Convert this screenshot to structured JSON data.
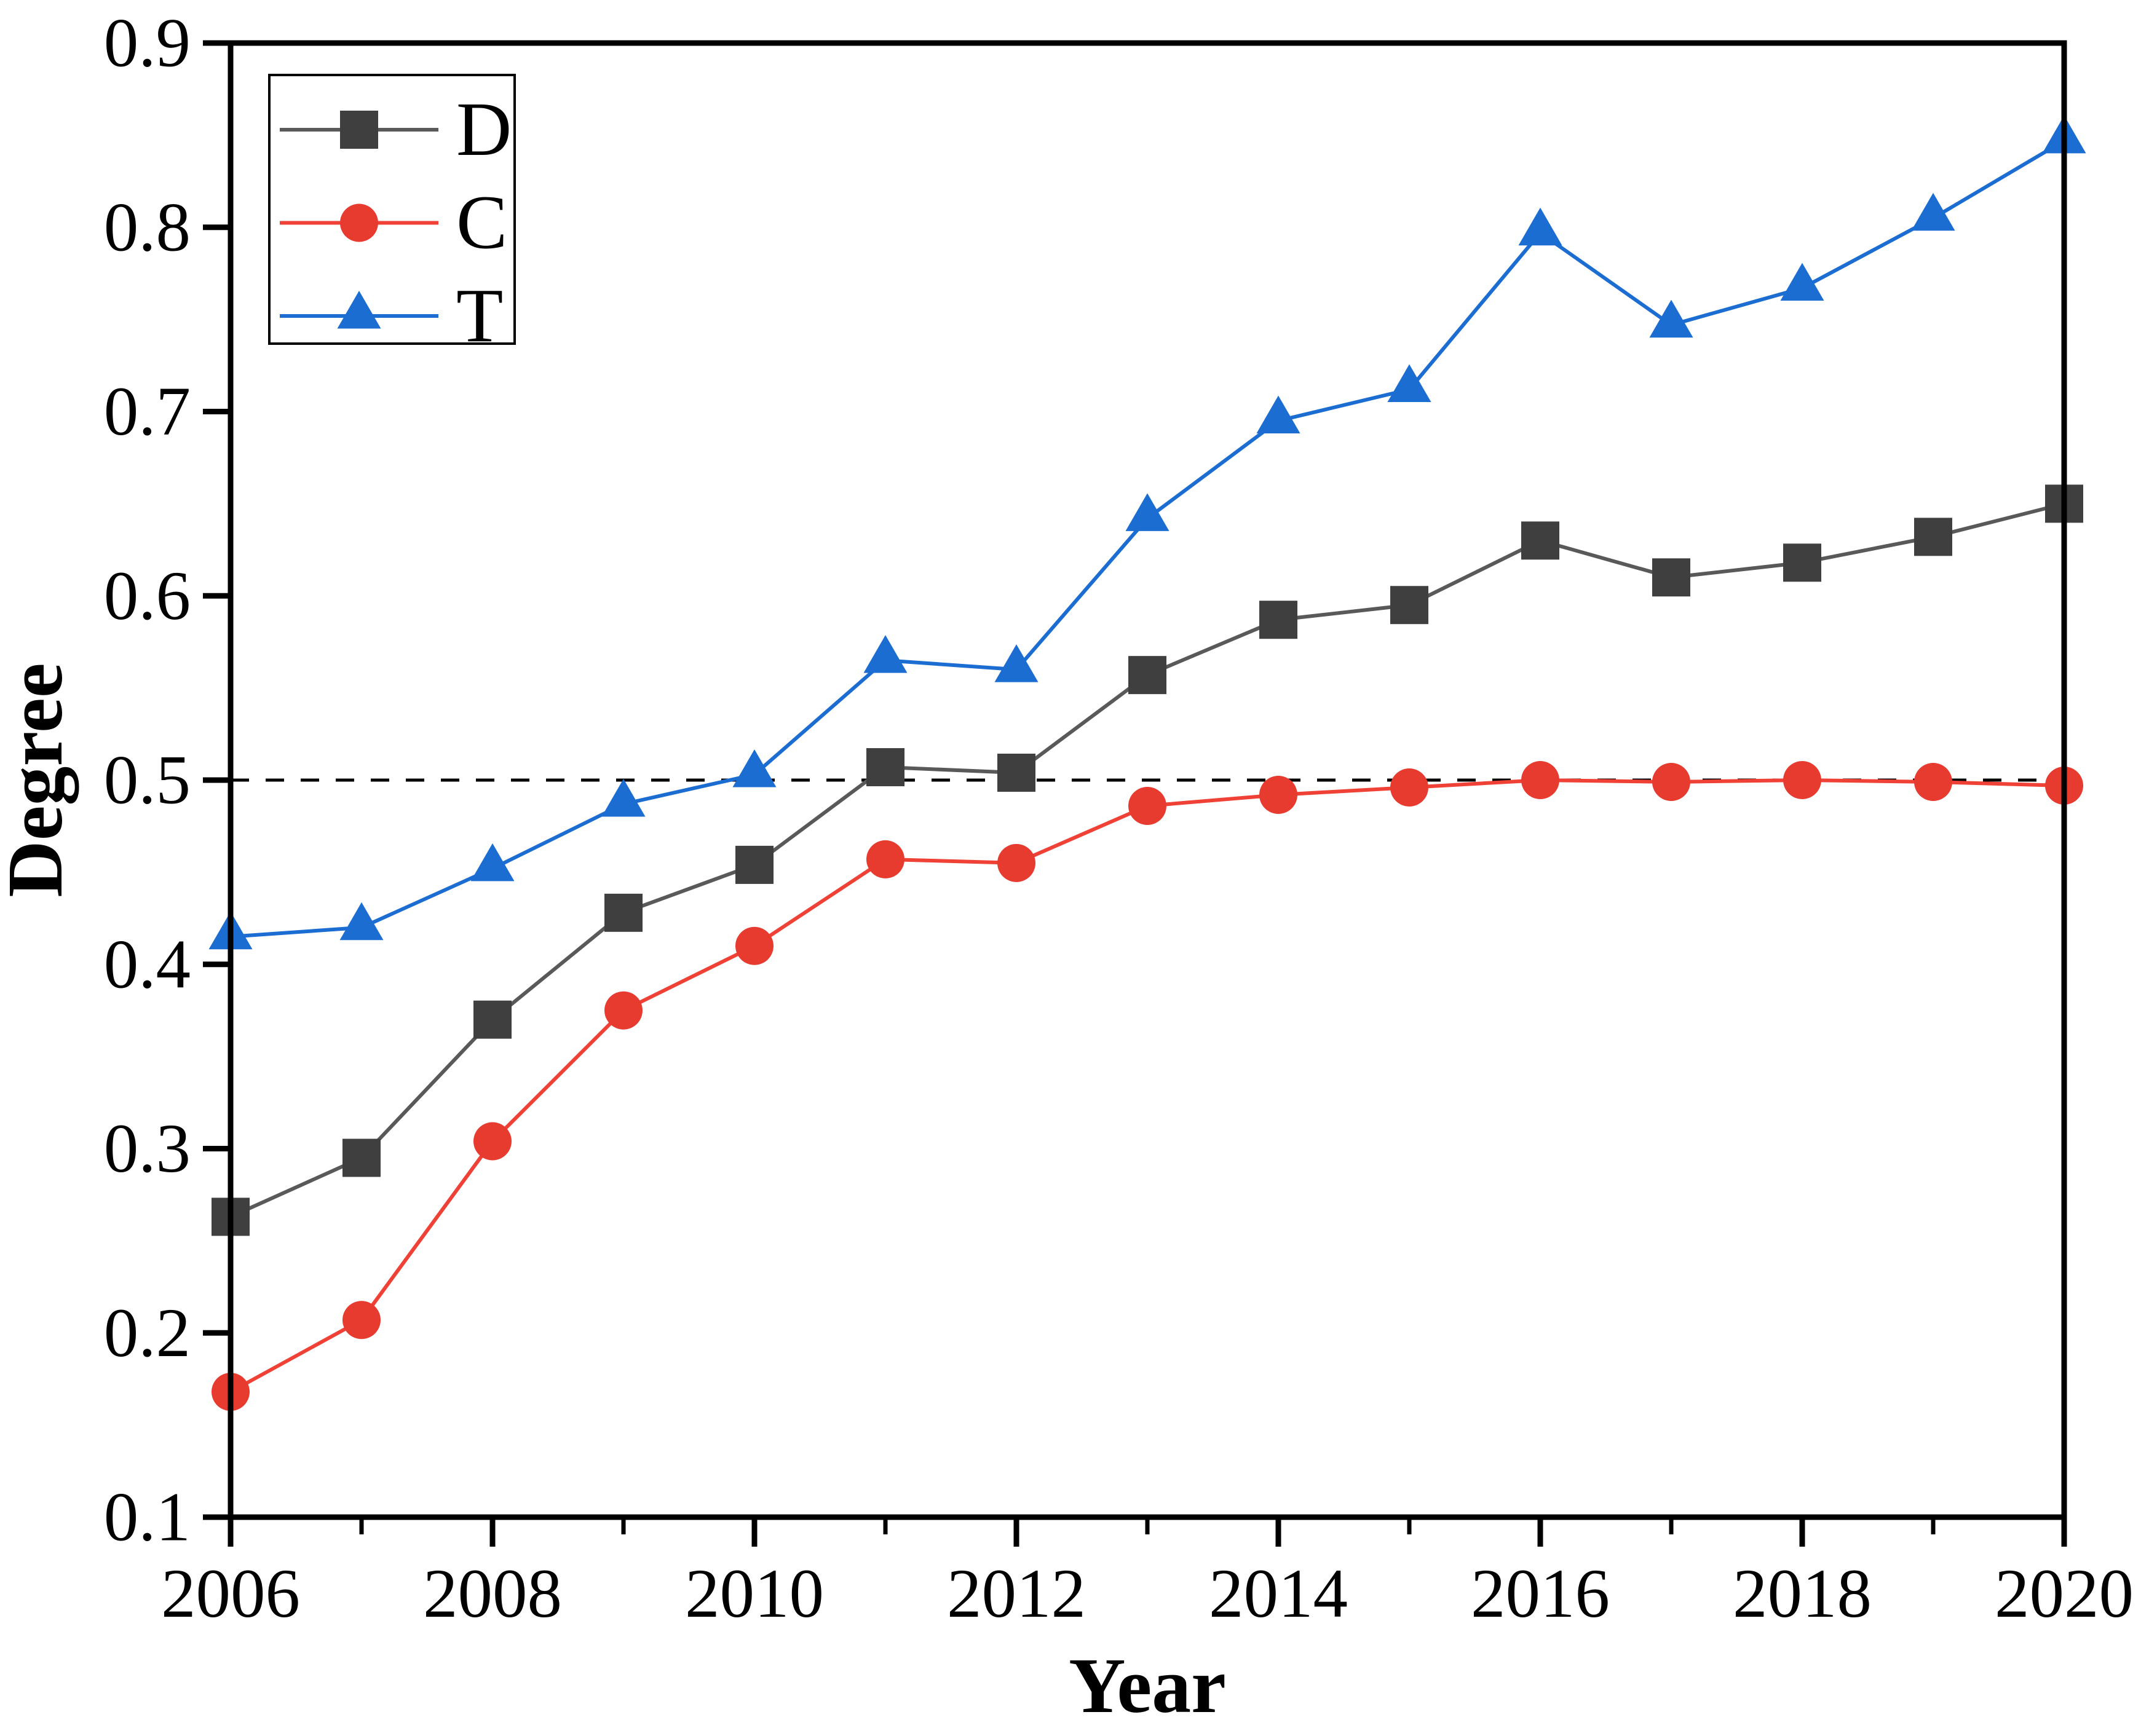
{
  "figure": {
    "background": "#ffffff",
    "axis_color": "#000000"
  },
  "chart_data": {
    "type": "line",
    "title": "",
    "xlabel": "Year",
    "ylabel": "Degree",
    "x": [
      2006,
      2007,
      2008,
      2009,
      2010,
      2011,
      2012,
      2013,
      2014,
      2015,
      2016,
      2017,
      2018,
      2019,
      2020
    ],
    "series": [
      {
        "name": "D",
        "marker": "square",
        "color": "#3f3f3f",
        "line_color": "#595959",
        "values": [
          0.263,
          0.295,
          0.37,
          0.428,
          0.454,
          0.507,
          0.504,
          0.557,
          0.587,
          0.595,
          0.63,
          0.61,
          0.618,
          0.632,
          0.65
        ]
      },
      {
        "name": "C",
        "marker": "circle",
        "color": "#e73b30",
        "line_color": "#ef4136",
        "values": [
          0.168,
          0.207,
          0.304,
          0.375,
          0.41,
          0.457,
          0.455,
          0.486,
          0.492,
          0.496,
          0.5,
          0.499,
          0.5,
          0.499,
          0.497
        ]
      },
      {
        "name": "T",
        "marker": "triangle",
        "color": "#1b6dd2",
        "line_color": "#1b6dd2",
        "values": [
          0.415,
          0.42,
          0.452,
          0.487,
          0.503,
          0.565,
          0.56,
          0.642,
          0.695,
          0.712,
          0.797,
          0.747,
          0.767,
          0.805,
          0.847
        ]
      }
    ],
    "ylim": [
      0.1,
      0.9
    ],
    "yticks": [
      0.1,
      0.2,
      0.3,
      0.4,
      0.5,
      0.6,
      0.7,
      0.8,
      0.9
    ],
    "ytick_labels": [
      "0.1",
      "0.2",
      "0.3",
      "0.4",
      "0.5",
      "0.6",
      "0.7",
      "0.8",
      "0.9"
    ],
    "xticks_major": [
      2006,
      2008,
      2010,
      2012,
      2014,
      2016,
      2018,
      2020
    ],
    "xtick_labels": [
      "2006",
      "2008",
      "2010",
      "2012",
      "2014",
      "2016",
      "2018",
      "2020"
    ],
    "xticks_minor": [
      2007,
      2009,
      2011,
      2013,
      2015,
      2017,
      2019
    ],
    "reference_line": {
      "y": 0.5,
      "style": "dashed",
      "color": "#000000"
    },
    "legend": {
      "position": "upper left",
      "labels": [
        "D",
        "C",
        "T"
      ]
    },
    "grid": false
  }
}
